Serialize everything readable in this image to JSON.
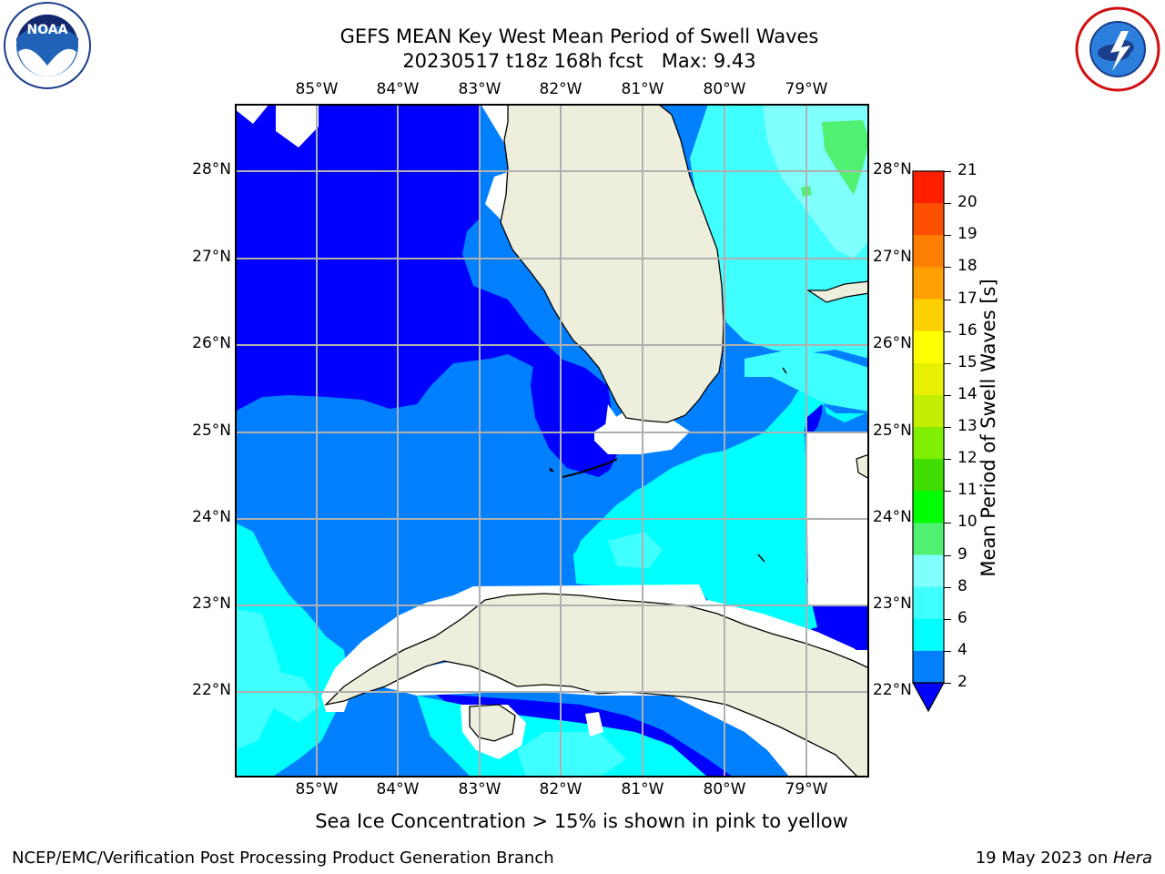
{
  "title": {
    "line1": "GEFS MEAN Key West Mean Period of Swell Waves",
    "line2": "20230517 t18z 168h fcst   Max: 9.43"
  },
  "logos": {
    "left": {
      "icon": "noaa-logo",
      "text": "NOAA",
      "ring_text": "NATIONAL OCEANIC AND ATMOSPHERIC ADMINISTRATION · U.S. DEPARTMENT OF COMMERCE"
    },
    "right": {
      "icon": "nws-logo",
      "ring_text": "NATIONAL WEATHER SERVICE"
    }
  },
  "map": {
    "lon_ticks": [
      "85°W",
      "84°W",
      "83°W",
      "82°W",
      "81°W",
      "80°W",
      "79°W"
    ],
    "lat_ticks": [
      "28°N",
      "27°N",
      "26°N",
      "25°N",
      "24°N",
      "23°N",
      "22°N"
    ],
    "extent": {
      "lon": [
        -86.0,
        -78.25
      ],
      "lat": [
        21.0,
        28.75
      ]
    },
    "land_color": "#eeeedd",
    "grid_color": "#b0b0b0"
  },
  "colorbar": {
    "label": "Mean Period of Swell Waves [s]",
    "ticks": [
      "2",
      "4",
      "6",
      "8",
      "9",
      "10",
      "11",
      "12",
      "13",
      "14",
      "15",
      "16",
      "17",
      "18",
      "19",
      "20",
      "21"
    ],
    "colors": [
      "#0000ff",
      "#0080ff",
      "#00ffff",
      "#40ffff",
      "#80ffff",
      "#50f070",
      "#00ff00",
      "#40dd00",
      "#80ee00",
      "#c0f000",
      "#e8f000",
      "#ffff00",
      "#ffd000",
      "#ffa000",
      "#ff8000",
      "#ff5000",
      "#ff2000",
      "#ff0000"
    ]
  },
  "note": "Sea Ice Concentration > 15% is shown in pink to yellow",
  "footer": {
    "left": "NCEP/EMC/Verification Post Processing Product Generation Branch",
    "right_date": "19 May 2023 on ",
    "right_host": "Hera"
  }
}
